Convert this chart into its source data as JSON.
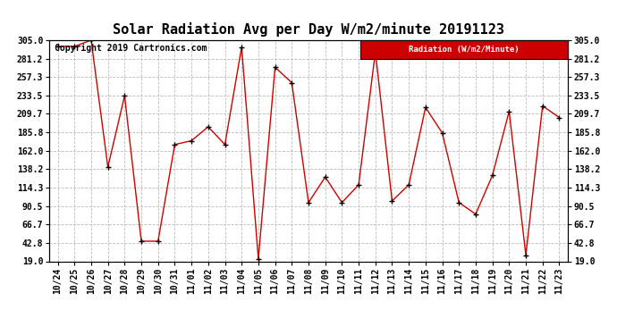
{
  "title": "Solar Radiation Avg per Day W/m2/minute 20191123",
  "copyright_text": "Copyright 2019 Cartronics.com",
  "legend_label": "Radiation (W/m2/Minute)",
  "dates": [
    "10/24",
    "10/25",
    "10/26",
    "10/27",
    "10/28",
    "10/29",
    "10/30",
    "10/31",
    "11/01",
    "11/02",
    "11/03",
    "11/04",
    "11/05",
    "11/06",
    "11/07",
    "11/08",
    "11/09",
    "11/10",
    "11/11",
    "11/12",
    "11/13",
    "11/14",
    "11/15",
    "11/16",
    "11/17",
    "11/18",
    "11/19",
    "11/20",
    "11/21",
    "11/22",
    "11/23"
  ],
  "values": [
    297.0,
    297.0,
    305.0,
    141.0,
    233.0,
    45.0,
    45.0,
    170.0,
    175.0,
    193.0,
    170.0,
    296.0,
    22.0,
    270.0,
    250.0,
    95.0,
    128.0,
    95.0,
    118.0,
    290.0,
    97.0,
    118.0,
    218.0,
    185.0,
    95.0,
    80.0,
    130.0,
    213.0,
    27.0,
    220.0,
    205.0
  ],
  "ylim": [
    19.0,
    305.0
  ],
  "yticks": [
    19.0,
    42.8,
    66.7,
    90.5,
    114.3,
    138.2,
    162.0,
    185.8,
    209.7,
    233.5,
    257.3,
    281.2,
    305.0
  ],
  "ytick_labels": [
    "19.0",
    "42.8",
    "66.7",
    "90.5",
    "114.3",
    "138.2",
    "162.0",
    "185.8",
    "209.7",
    "233.5",
    "257.3",
    "281.2",
    "305.0"
  ],
  "line_color": "#cc0000",
  "marker_color": "#000000",
  "bg_color": "#ffffff",
  "grid_color": "#bbbbbb",
  "legend_bg": "#cc0000",
  "legend_text_color": "#ffffff",
  "title_fontsize": 11,
  "tick_fontsize": 7,
  "copyright_fontsize": 7
}
